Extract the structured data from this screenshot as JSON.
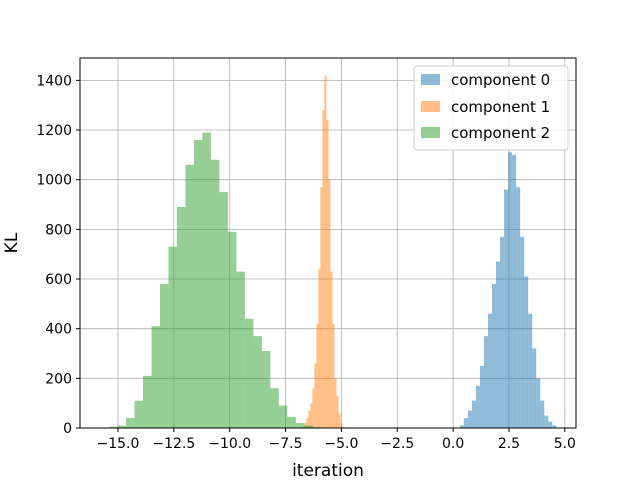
{
  "chart_data": {
    "type": "histogram",
    "xlabel": "iteration",
    "ylabel": "KL",
    "xlim": [
      -16.7,
      5.5
    ],
    "ylim": [
      0,
      1490
    ],
    "x_ticks": [
      -15.0,
      -12.5,
      -10.0,
      -7.5,
      -5.0,
      -2.5,
      0.0,
      2.5,
      5.0
    ],
    "x_tick_labels": [
      "−15.0",
      "−12.5",
      "−10.0",
      "−7.5",
      "−5.0",
      "−2.5",
      "0.0",
      "2.5",
      "5.0"
    ],
    "y_ticks": [
      0,
      200,
      400,
      600,
      800,
      1000,
      1200,
      1400
    ],
    "y_tick_labels": [
      "0",
      "200",
      "400",
      "600",
      "800",
      "1000",
      "1200",
      "1400"
    ],
    "grid": true,
    "legend_position": "top-right",
    "bar_alpha": 0.5,
    "series": [
      {
        "name": "component 0",
        "color": "#1f77b4",
        "bin_width": 0.18,
        "bins": [
          [
            0.3,
            10
          ],
          [
            0.48,
            40
          ],
          [
            0.66,
            70
          ],
          [
            0.84,
            110
          ],
          [
            1.02,
            170
          ],
          [
            1.2,
            250
          ],
          [
            1.38,
            370
          ],
          [
            1.56,
            460
          ],
          [
            1.74,
            580
          ],
          [
            1.92,
            670
          ],
          [
            2.1,
            770
          ],
          [
            2.28,
            960
          ],
          [
            2.46,
            1110
          ],
          [
            2.64,
            1100
          ],
          [
            2.82,
            970
          ],
          [
            3.0,
            770
          ],
          [
            3.18,
            610
          ],
          [
            3.36,
            460
          ],
          [
            3.54,
            320
          ],
          [
            3.72,
            200
          ],
          [
            3.9,
            110
          ],
          [
            4.08,
            50
          ],
          [
            4.26,
            25
          ],
          [
            4.44,
            10
          ]
        ]
      },
      {
        "name": "component 1",
        "color": "#ff7f0e",
        "bin_width": 0.09,
        "bins": [
          [
            -6.75,
            5
          ],
          [
            -6.66,
            20
          ],
          [
            -6.57,
            40
          ],
          [
            -6.48,
            70
          ],
          [
            -6.39,
            100
          ],
          [
            -6.3,
            160
          ],
          [
            -6.21,
            260
          ],
          [
            -6.12,
            420
          ],
          [
            -6.03,
            640
          ],
          [
            -5.94,
            970
          ],
          [
            -5.85,
            1280
          ],
          [
            -5.76,
            1420
          ],
          [
            -5.67,
            1240
          ],
          [
            -5.58,
            1000
          ],
          [
            -5.49,
            630
          ],
          [
            -5.4,
            420
          ],
          [
            -5.31,
            200
          ],
          [
            -5.22,
            130
          ],
          [
            -5.13,
            60
          ],
          [
            -5.04,
            20
          ],
          [
            -4.95,
            5
          ]
        ]
      },
      {
        "name": "component 2",
        "color": "#2ca02c",
        "bin_width": 0.38,
        "bins": [
          [
            -15.4,
            5
          ],
          [
            -15.02,
            10
          ],
          [
            -14.64,
            40
          ],
          [
            -14.26,
            110
          ],
          [
            -13.88,
            210
          ],
          [
            -13.5,
            410
          ],
          [
            -13.12,
            580
          ],
          [
            -12.74,
            730
          ],
          [
            -12.36,
            890
          ],
          [
            -11.98,
            1060
          ],
          [
            -11.6,
            1160
          ],
          [
            -11.22,
            1190
          ],
          [
            -10.84,
            1080
          ],
          [
            -10.46,
            950
          ],
          [
            -10.08,
            790
          ],
          [
            -9.7,
            630
          ],
          [
            -9.32,
            440
          ],
          [
            -8.94,
            370
          ],
          [
            -8.56,
            310
          ],
          [
            -8.18,
            160
          ],
          [
            -7.8,
            90
          ],
          [
            -7.42,
            45
          ],
          [
            -7.04,
            20
          ],
          [
            -6.66,
            10
          ],
          [
            -6.28,
            3
          ]
        ]
      }
    ]
  }
}
